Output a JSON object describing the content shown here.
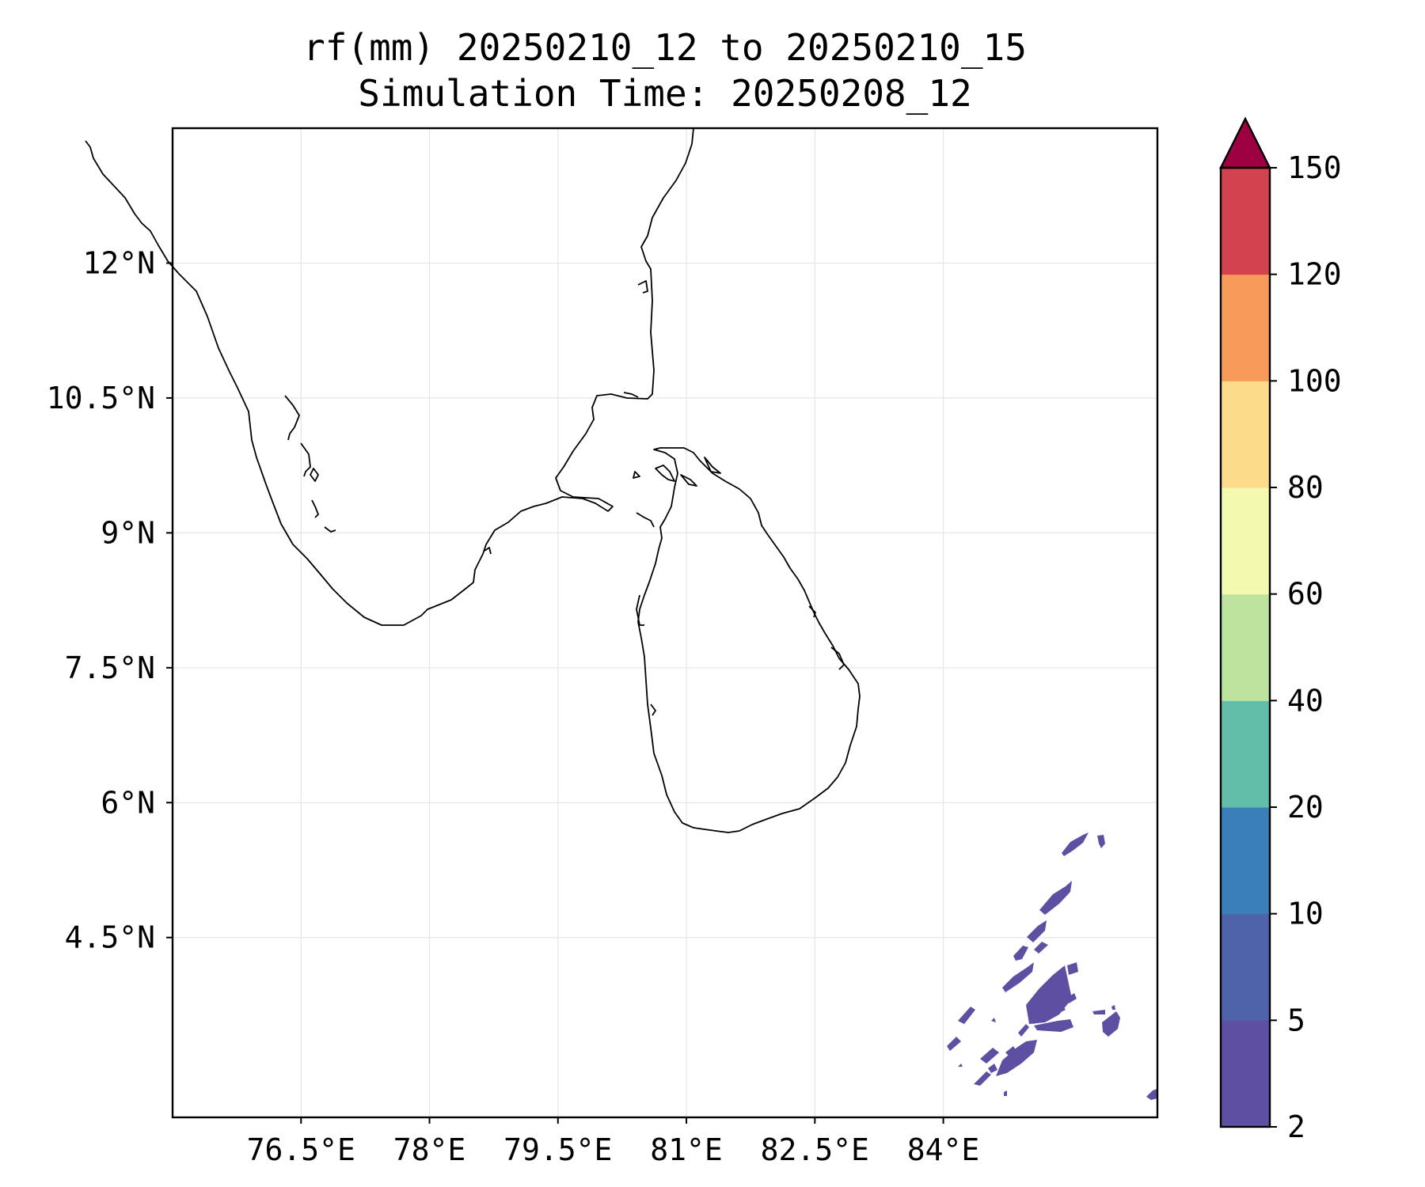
{
  "title_line1": "rf(mm) 20250210_12 to 20250210_15",
  "title_line2": "Simulation Time: 20250208_12",
  "map": {
    "lon_range": [
      75.0,
      86.5
    ],
    "lat_range": [
      2.5,
      13.5
    ],
    "x_ticks": [
      "76.5°E",
      "78°E",
      "79.5°E",
      "81°E",
      "82.5°E",
      "84°E"
    ],
    "x_tick_values": [
      76.5,
      78.0,
      79.5,
      81.0,
      82.5,
      84.0
    ],
    "y_ticks": [
      "12°N",
      "10.5°N",
      "9°N",
      "7.5°N",
      "6°N",
      "4.5°N"
    ],
    "y_tick_values": [
      12.0,
      10.5,
      9.0,
      7.5,
      6.0,
      4.5
    ],
    "grid": true,
    "coastline_color": "#000000",
    "rain_color": "#5e4fa2"
  },
  "colorbar": {
    "labels": [
      "2",
      "5",
      "10",
      "20",
      "40",
      "60",
      "80",
      "100",
      "120",
      "150"
    ],
    "colors": [
      "#5e4fa2",
      "#4f63ab",
      "#3a7fb8",
      "#62bda9",
      "#bde49f",
      "#f3fab0",
      "#fbdc8a",
      "#f89a5a",
      "#d3424f"
    ],
    "extend_color": "#9e0142",
    "extend": "max"
  }
}
